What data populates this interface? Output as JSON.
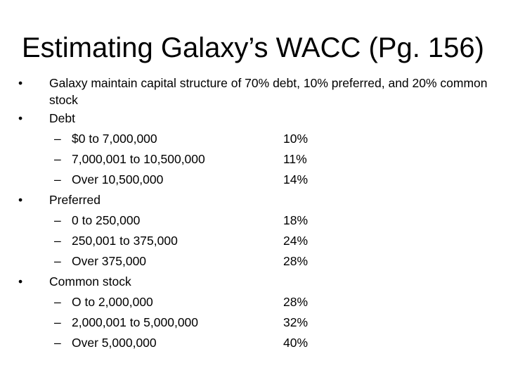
{
  "slide": {
    "title": "Estimating Galaxy’s WACC (Pg. 156)",
    "intro": "Galaxy maintain capital structure of 70% debt, 10% preferred, and 20% common stock",
    "bullet_glyph": "•",
    "dash_glyph": "–",
    "sections": [
      {
        "heading": "Debt",
        "rows": [
          {
            "range": "$0 to 7,000,000",
            "rate": "10%"
          },
          {
            "range": "7,000,001 to 10,500,000",
            "rate": "11%"
          },
          {
            "range": "Over 10,500,000",
            "rate": "14%"
          }
        ]
      },
      {
        "heading": "Preferred",
        "rows": [
          {
            "range": "0 to 250,000",
            "rate": "18%"
          },
          {
            "range": "250,001 to 375,000",
            "rate": "24%"
          },
          {
            "range": "Over 375,000",
            "rate": "28%"
          }
        ]
      },
      {
        "heading": "Common stock",
        "rows": [
          {
            "range": "O to 2,000,000",
            "rate": "28%"
          },
          {
            "range": "2,000,001 to 5,000,000",
            "rate": "32%"
          },
          {
            "range": "Over 5,000,000",
            "rate": "40%"
          }
        ]
      }
    ]
  }
}
